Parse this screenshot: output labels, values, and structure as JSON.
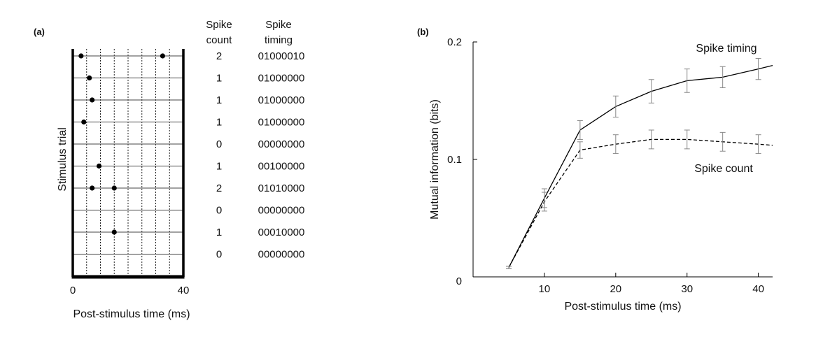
{
  "chart_data": [
    {
      "panel_label": "(a)",
      "type": "scatter",
      "xlabel": "Post-stimulus time (ms)",
      "ylabel": "Stimulus trial",
      "xlim": [
        0,
        40
      ],
      "x_ticks": [
        "0",
        "40"
      ],
      "bin_count": 8,
      "col_header_count": [
        "Spike",
        "count"
      ],
      "col_header_timing": [
        "Spike",
        "timing"
      ],
      "trials": [
        {
          "spikes_ms": [
            3,
            32.5
          ],
          "count": "2",
          "timing": "01000010"
        },
        {
          "spikes_ms": [
            6
          ],
          "count": "1",
          "timing": "01000000"
        },
        {
          "spikes_ms": [
            7
          ],
          "count": "1",
          "timing": "01000000"
        },
        {
          "spikes_ms": [
            4
          ],
          "count": "1",
          "timing": "01000000"
        },
        {
          "spikes_ms": [],
          "count": "0",
          "timing": "00000000"
        },
        {
          "spikes_ms": [
            9.5
          ],
          "count": "1",
          "timing": "00100000"
        },
        {
          "spikes_ms": [
            7,
            15
          ],
          "count": "2",
          "timing": "01010000"
        },
        {
          "spikes_ms": [],
          "count": "0",
          "timing": "00000000"
        },
        {
          "spikes_ms": [
            15
          ],
          "count": "1",
          "timing": "00010000"
        },
        {
          "spikes_ms": [],
          "count": "0",
          "timing": "00000000"
        }
      ]
    },
    {
      "panel_label": "(b)",
      "type": "line",
      "xlabel": "Post-stimulus time (ms)",
      "ylabel": "Mutual information (bits)",
      "xlim": [
        0,
        42
      ],
      "ylim": [
        0,
        0.2
      ],
      "x_ticks": [
        10,
        20,
        30,
        40
      ],
      "y_ticks": [
        {
          "v": 0,
          "label": "0"
        },
        {
          "v": 0.1,
          "label": "0.1"
        },
        {
          "v": 0.2,
          "label": "0.2"
        }
      ],
      "series": [
        {
          "name": "Spike timing",
          "style": "solid",
          "x": [
            5,
            10,
            15,
            20,
            25,
            30,
            35,
            40,
            42
          ],
          "y": [
            0.008,
            0.067,
            0.125,
            0.145,
            0.158,
            0.167,
            0.17,
            0.177,
            0.18
          ],
          "err": [
            0.001,
            0.008,
            0.008,
            0.009,
            0.01,
            0.01,
            0.009,
            0.009,
            null
          ]
        },
        {
          "name": "Spike count",
          "style": "dashed",
          "x": [
            5,
            10,
            15,
            20,
            25,
            30,
            35,
            40,
            42
          ],
          "y": [
            0.008,
            0.064,
            0.108,
            0.113,
            0.117,
            0.117,
            0.115,
            0.113,
            0.112
          ],
          "err": [
            0.001,
            0.008,
            0.007,
            0.008,
            0.008,
            0.008,
            0.008,
            0.008,
            null
          ]
        }
      ]
    }
  ]
}
